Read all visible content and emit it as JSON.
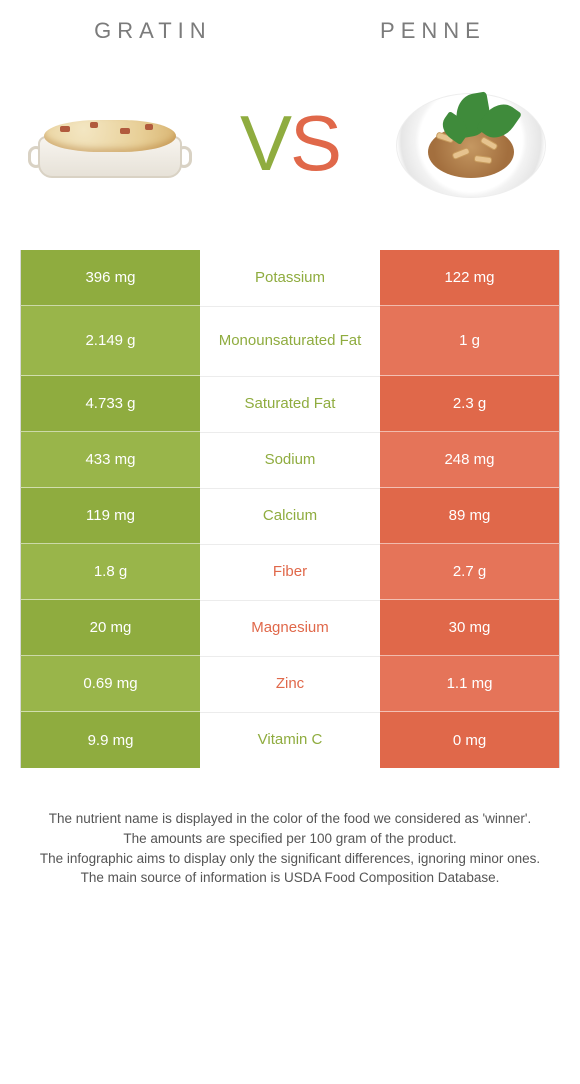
{
  "colors": {
    "gratin": "#8fac3f",
    "penne": "#e0684a",
    "gratin_alt": "#99b54a",
    "penne_alt": "#e57459",
    "mid_text": "#555555"
  },
  "header": {
    "left": "Gratin",
    "right": "Penne"
  },
  "vs": {
    "v": "V",
    "s": "S"
  },
  "rows": [
    {
      "left": "396 mg",
      "name": "Potassium",
      "right": "122 mg",
      "winner": "gratin",
      "tall": false
    },
    {
      "left": "2.149 g",
      "name": "Monounsaturated Fat",
      "right": "1 g",
      "winner": "gratin",
      "tall": true
    },
    {
      "left": "4.733 g",
      "name": "Saturated Fat",
      "right": "2.3 g",
      "winner": "gratin",
      "tall": false
    },
    {
      "left": "433 mg",
      "name": "Sodium",
      "right": "248 mg",
      "winner": "gratin",
      "tall": false
    },
    {
      "left": "119 mg",
      "name": "Calcium",
      "right": "89 mg",
      "winner": "gratin",
      "tall": false
    },
    {
      "left": "1.8 g",
      "name": "Fiber",
      "right": "2.7 g",
      "winner": "penne",
      "tall": false
    },
    {
      "left": "20 mg",
      "name": "Magnesium",
      "right": "30 mg",
      "winner": "penne",
      "tall": false
    },
    {
      "left": "0.69 mg",
      "name": "Zinc",
      "right": "1.1 mg",
      "winner": "penne",
      "tall": false
    },
    {
      "left": "9.9 mg",
      "name": "Vitamin C",
      "right": "0 mg",
      "winner": "gratin",
      "tall": false
    }
  ],
  "footer": {
    "l1": "The nutrient name is displayed in the color of the food we considered as 'winner'.",
    "l2": "The amounts are specified per 100 gram of the product.",
    "l3": "The infographic aims to display only the significant differences, ignoring minor ones.",
    "l4": "The main source of information is USDA Food Composition Database."
  }
}
